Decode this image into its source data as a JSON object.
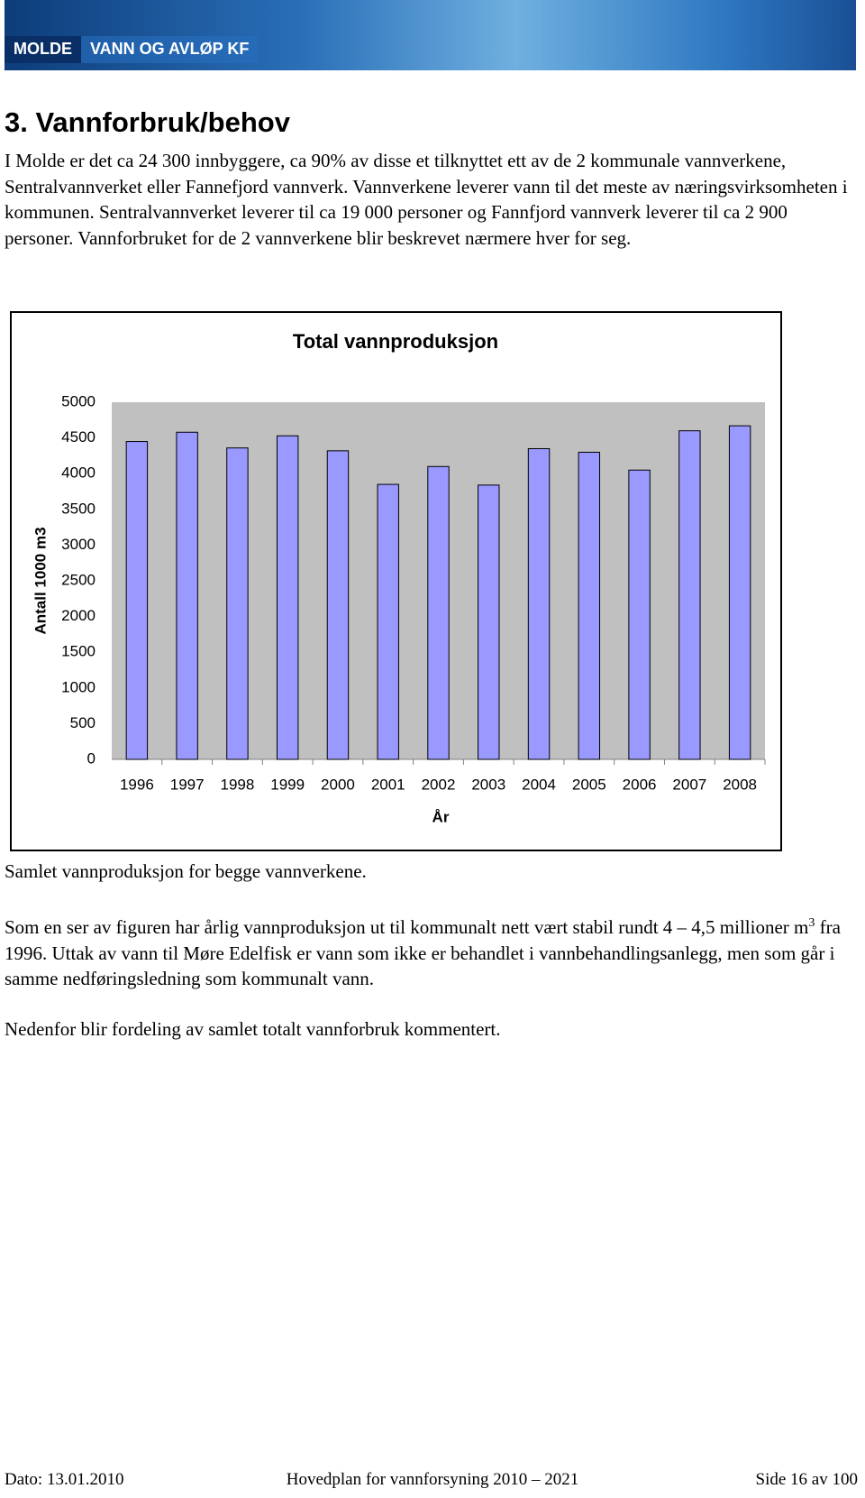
{
  "header": {
    "logo_left": "MOLDE",
    "logo_right": "VANN OG AVLØP KF"
  },
  "heading": "3. Vannforbruk/behov",
  "paragraph_1": "I Molde er det ca 24 300 innbyggere, ca 90%  av disse et tilknyttet ett av de 2 kommunale vannverkene, Sentralvannverket eller Fannefjord vannverk. Vannverkene leverer vann til det meste av næringsvirksomheten i kommunen. Sentralvannverket leverer til ca 19 000 personer og Fannfjord vannverk leverer til ca 2 900 personer. Vannforbruket for de 2 vannverkene blir beskrevet nærmere hver for seg.",
  "chart_data": {
    "type": "bar",
    "title": "Total vannproduksjon",
    "y_label": "Antall 1000 m3",
    "x_label": "År",
    "categories": [
      "1996",
      "1997",
      "1998",
      "1999",
      "2000",
      "2001",
      "2002",
      "2003",
      "2004",
      "2005",
      "2006",
      "2007",
      "2008"
    ],
    "values": [
      4450,
      4580,
      4360,
      4530,
      4320,
      3850,
      4100,
      3840,
      4350,
      4300,
      4050,
      4600,
      4670
    ],
    "color": "#9999ff",
    "ylim": [
      0,
      5000
    ],
    "yticks": [
      0,
      500,
      1000,
      1500,
      2000,
      2500,
      3000,
      3500,
      4000,
      4500,
      5000
    ],
    "grid": false
  },
  "caption": "Samlet vannproduksjon for begge vannverkene.",
  "paragraph_2": {
    "before": "Som en ser av figuren har årlig vannproduksjon ut til kommunalt nett vært stabil rundt 4 – 4,5 millioner m",
    "superscript": "3",
    "after": " fra 1996. Uttak av vann til Møre Edelfisk er vann som ikke er behandlet i vannbehandlingsanlegg, men som går i samme nedføringsledning som kommunalt vann."
  },
  "paragraph_3": "Nedenfor blir fordeling av samlet totalt vannforbruk kommentert.",
  "footer": {
    "left": "Dato: 13.01.2010",
    "center": "Hovedplan for vannforsyning 2010 – 2021",
    "right": "Side 16 av 100"
  }
}
